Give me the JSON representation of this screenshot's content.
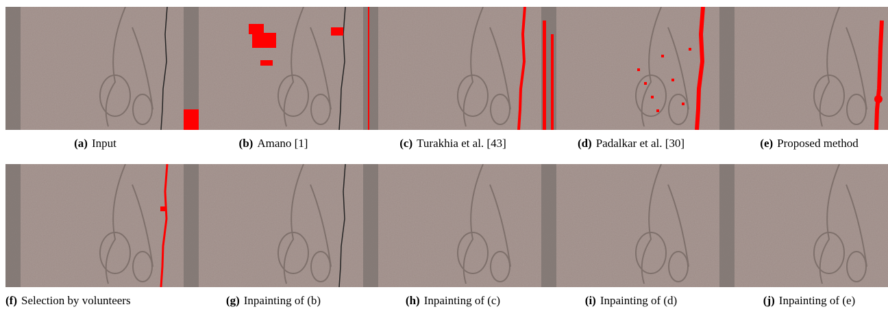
{
  "figures": [
    {
      "label": "(a)",
      "caption": "Input"
    },
    {
      "label": "(b)",
      "caption": "Amano [1]"
    },
    {
      "label": "(c)",
      "caption": "Turakhia et al. [43]"
    },
    {
      "label": "(d)",
      "caption": "Padalkar et al. [30]"
    },
    {
      "label": "(e)",
      "caption": "Proposed method"
    },
    {
      "label": "(f)",
      "caption": "Selection by volunteers"
    },
    {
      "label": "(g)",
      "caption": "Inpainting of (b)"
    },
    {
      "label": "(h)",
      "caption": "Inpainting of (c)"
    },
    {
      "label": "(i)",
      "caption": "Inpainting of (d)"
    },
    {
      "label": "(j)",
      "caption": "Inpainting of (e)"
    }
  ]
}
